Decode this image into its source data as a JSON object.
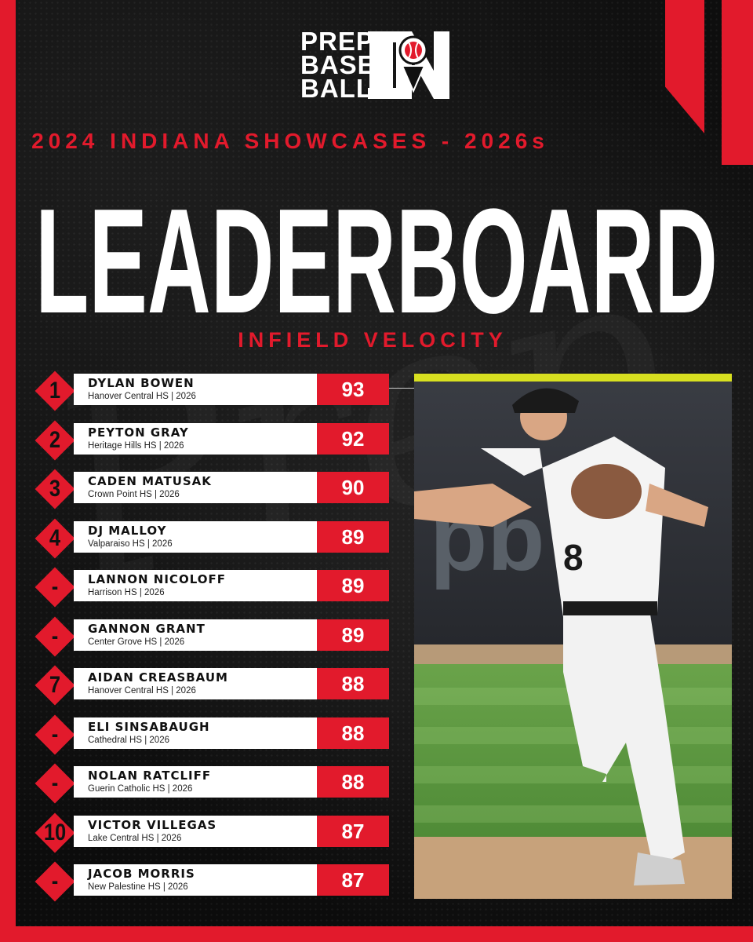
{
  "brand": {
    "logo_lines": [
      "PREP",
      "BASE",
      "BALL"
    ],
    "logo_state": "IN",
    "accent_color": "#e21a2c"
  },
  "header": {
    "subtitle": "2024 INDIANA SHOWCASES - 2026s",
    "title": "LEADERBOARD",
    "category": "INFIELD VELOCITY"
  },
  "leaderboard": [
    {
      "rank": "1",
      "name": "DYLAN BOWEN",
      "school": "Hanover Central HS | 2026",
      "value": "93"
    },
    {
      "rank": "2",
      "name": "PEYTON GRAY",
      "school": "Heritage Hills HS | 2026",
      "value": "92"
    },
    {
      "rank": "3",
      "name": "CADEN MATUSAK",
      "school": "Crown Point HS | 2026",
      "value": "90"
    },
    {
      "rank": "4",
      "name": "DJ MALLOY",
      "school": "Valparaiso HS | 2026",
      "value": "89"
    },
    {
      "rank": "-",
      "name": "LANNON NICOLOFF",
      "school": "Harrison HS | 2026",
      "value": "89"
    },
    {
      "rank": "-",
      "name": "GANNON GRANT",
      "school": "Center Grove HS | 2026",
      "value": "89"
    },
    {
      "rank": "7",
      "name": "AIDAN CREASBAUM",
      "school": "Hanover Central HS | 2026",
      "value": "88"
    },
    {
      "rank": "-",
      "name": "ELI SINSABAUGH",
      "school": "Cathedral HS | 2026",
      "value": "88"
    },
    {
      "rank": "-",
      "name": "NOLAN RATCLIFF",
      "school": "Guerin Catholic HS | 2026",
      "value": "88"
    },
    {
      "rank": "10",
      "name": "VICTOR VILLEGAS",
      "school": "Lake Central HS | 2026",
      "value": "87"
    },
    {
      "rank": "-",
      "name": "JACOB MORRIS",
      "school": "New Palestine HS | 2026",
      "value": "87"
    }
  ],
  "photo": {
    "jersey_number": "8"
  }
}
